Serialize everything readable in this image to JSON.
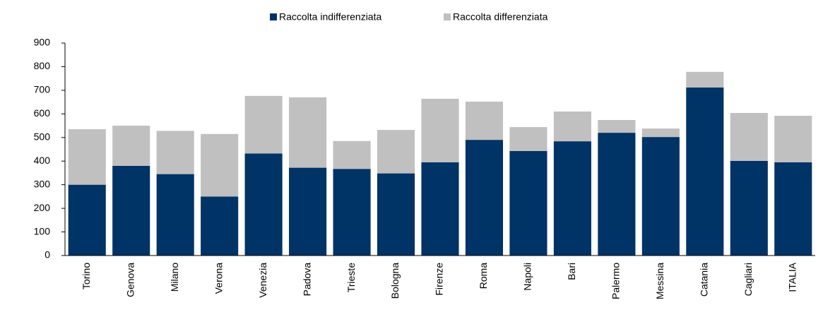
{
  "chart_data": {
    "type": "stacked_bar",
    "categories": [
      "Torino",
      "Genova",
      "Milano",
      "Verona",
      "Venezia",
      "Padova",
      "Trieste",
      "Bologna",
      "Firenze",
      "Roma",
      "Napoli",
      "Bari",
      "Palermo",
      "Messina",
      "Catania",
      "Cagliari",
      "ITALIA"
    ],
    "series": [
      {
        "name": "Raccolta indifferenziata",
        "color": "#003366",
        "values": [
          300,
          380,
          345,
          250,
          432,
          372,
          367,
          348,
          395,
          490,
          443,
          484,
          520,
          502,
          712,
          401,
          395
        ]
      },
      {
        "name": "Raccolta differenziata",
        "color": "#c0c0c0",
        "values": [
          235,
          170,
          183,
          265,
          244,
          298,
          118,
          184,
          269,
          162,
          101,
          126,
          54,
          36,
          66,
          203,
          197
        ]
      }
    ],
    "ylim": [
      0,
      900
    ],
    "yticks": [
      0,
      100,
      200,
      300,
      400,
      500,
      600,
      700,
      800,
      900
    ],
    "legend": "top"
  }
}
